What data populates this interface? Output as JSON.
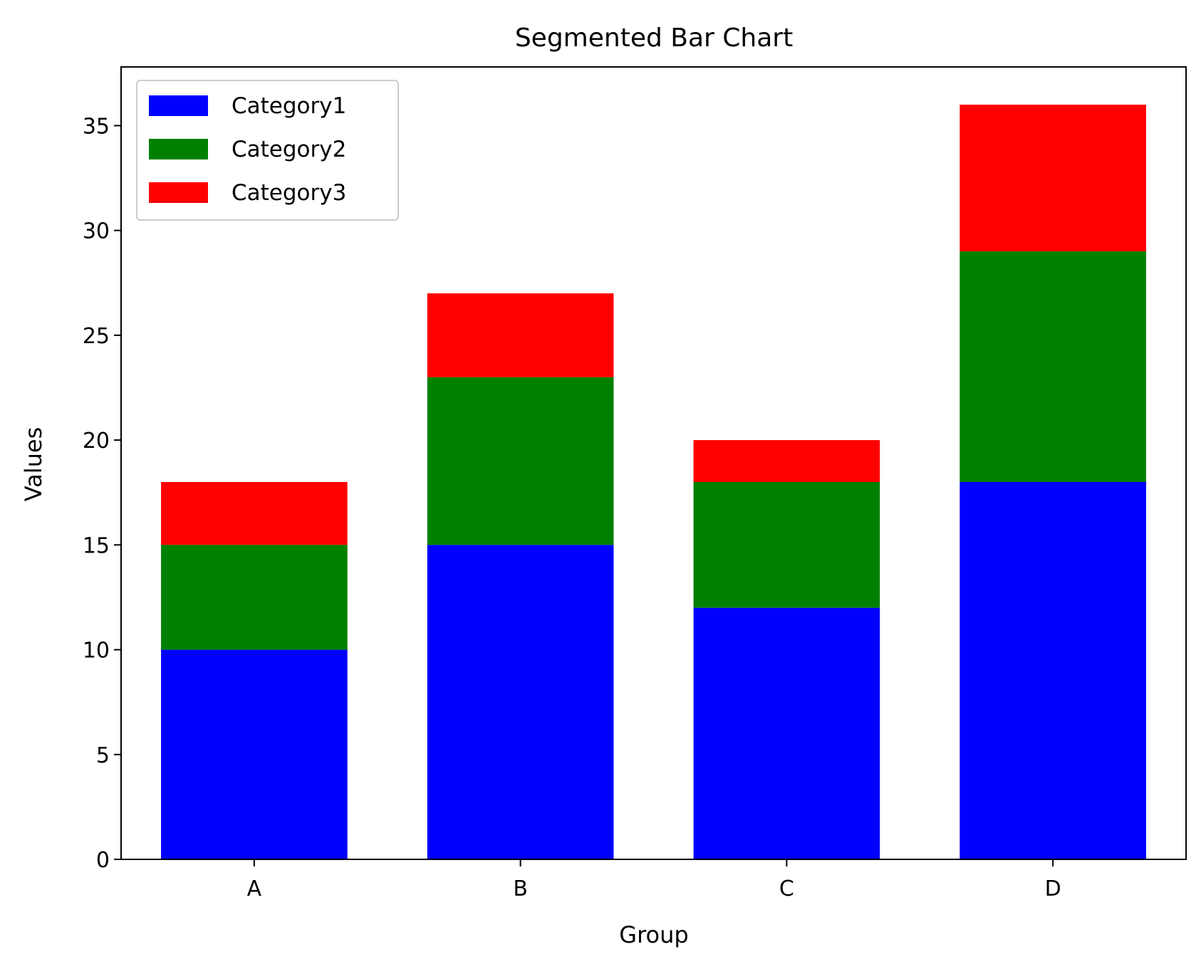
{
  "chart_data": {
    "type": "bar",
    "stacked": true,
    "title": "Segmented Bar Chart",
    "xlabel": "Group",
    "ylabel": "Values",
    "categories": [
      "A",
      "B",
      "C",
      "D"
    ],
    "series": [
      {
        "name": "Category1",
        "color": "#0000ff",
        "values": [
          10,
          15,
          12,
          18
        ]
      },
      {
        "name": "Category2",
        "color": "#008000",
        "values": [
          5,
          8,
          6,
          11
        ]
      },
      {
        "name": "Category3",
        "color": "#ff0000",
        "values": [
          3,
          4,
          2,
          7
        ]
      }
    ],
    "ylim": [
      0,
      37.8
    ],
    "yticks": [
      0,
      5,
      10,
      15,
      20,
      25,
      30,
      35
    ],
    "grid": false,
    "legend_position": "top-left"
  }
}
